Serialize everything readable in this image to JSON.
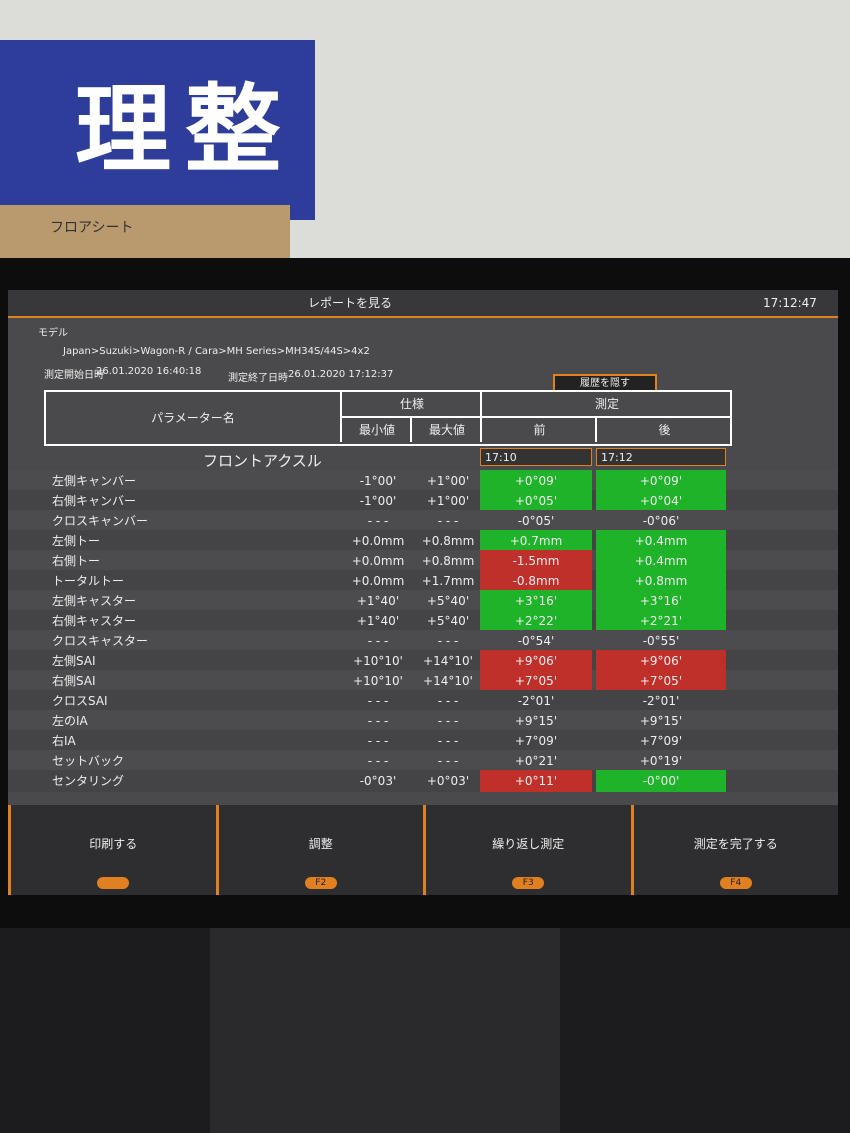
{
  "background": {
    "sign": "理整頓",
    "box_label": "フロアシート"
  },
  "header": {
    "title": "レポートを見る",
    "clock": "17:12:47"
  },
  "model": {
    "label": "モデル",
    "path": "Japan>Suzuki>Wagon-R / Cara>MH Series>MH34S/44S>4x2"
  },
  "times": {
    "start_label": "測定開始日時",
    "start": "26.01.2020 16:40:18",
    "end_label": "測定終了日時",
    "end": "26.01.2020 17:12:37"
  },
  "hide_history": "履歴を隠す",
  "table": {
    "headers": {
      "name": "パラメーター名",
      "spec": "仕様",
      "min": "最小値",
      "max": "最大値",
      "measure": "測定",
      "before": "前",
      "after": "後"
    },
    "section": "フロントアクスル",
    "before_time": "17:10",
    "after_time": "17:12",
    "rows": [
      {
        "name": "左側キャンバー",
        "min": "-1°00'",
        "max": "+1°00'",
        "before": "+0°09'",
        "after": "+0°09'",
        "before_status": "ok",
        "after_status": "ok"
      },
      {
        "name": "右側キャンバー",
        "min": "-1°00'",
        "max": "+1°00'",
        "before": "+0°05'",
        "after": "+0°04'",
        "before_status": "ok",
        "after_status": "ok"
      },
      {
        "name": "クロスキャンバー",
        "min": "- - -",
        "max": "- - -",
        "before": "-0°05'",
        "after": "-0°06'",
        "before_status": null,
        "after_status": null
      },
      {
        "name": "左側トー",
        "min": "+0.0mm",
        "max": "+0.8mm",
        "before": "+0.7mm",
        "after": "+0.4mm",
        "before_status": "ok",
        "after_status": "ok"
      },
      {
        "name": "右側トー",
        "min": "+0.0mm",
        "max": "+0.8mm",
        "before": "-1.5mm",
        "after": "+0.4mm",
        "before_status": "ng",
        "after_status": "ok"
      },
      {
        "name": "トータルトー",
        "min": "+0.0mm",
        "max": "+1.7mm",
        "before": "-0.8mm",
        "after": "+0.8mm",
        "before_status": "ng",
        "after_status": "ok"
      },
      {
        "name": "左側キャスター",
        "min": "+1°40'",
        "max": "+5°40'",
        "before": "+3°16'",
        "after": "+3°16'",
        "before_status": "ok",
        "after_status": "ok"
      },
      {
        "name": "右側キャスター",
        "min": "+1°40'",
        "max": "+5°40'",
        "before": "+2°22'",
        "after": "+2°21'",
        "before_status": "ok",
        "after_status": "ok"
      },
      {
        "name": "クロスキャスター",
        "min": "- - -",
        "max": "- - -",
        "before": "-0°54'",
        "after": "-0°55'",
        "before_status": null,
        "after_status": null
      },
      {
        "name": "左側SAI",
        "min": "+10°10'",
        "max": "+14°10'",
        "before": "+9°06'",
        "after": "+9°06'",
        "before_status": "ng",
        "after_status": "ng"
      },
      {
        "name": "右側SAI",
        "min": "+10°10'",
        "max": "+14°10'",
        "before": "+7°05'",
        "after": "+7°05'",
        "before_status": "ng",
        "after_status": "ng"
      },
      {
        "name": "クロスSAI",
        "min": "- - -",
        "max": "- - -",
        "before": "-2°01'",
        "after": "-2°01'",
        "before_status": null,
        "after_status": null
      },
      {
        "name": "左のIA",
        "min": "- - -",
        "max": "- - -",
        "before": "+9°15'",
        "after": "+9°15'",
        "before_status": null,
        "after_status": null
      },
      {
        "name": "右IA",
        "min": "- - -",
        "max": "- - -",
        "before": "+7°09'",
        "after": "+7°09'",
        "before_status": null,
        "after_status": null
      },
      {
        "name": "セットバック",
        "min": "- - -",
        "max": "- - -",
        "before": "+0°21'",
        "after": "+0°19'",
        "before_status": null,
        "after_status": null
      },
      {
        "name": "センタリング",
        "min": "-0°03'",
        "max": "+0°03'",
        "before": "+0°11'",
        "after": "-0°00'",
        "before_status": "ng",
        "after_status": "ok"
      }
    ]
  },
  "footer": [
    {
      "label": "印刷する"
    },
    {
      "label": "調整",
      "key": "F2"
    },
    {
      "label": "繰り返し測定",
      "key": "F3"
    },
    {
      "label": "測定を完了する",
      "key": "F4"
    }
  ]
}
